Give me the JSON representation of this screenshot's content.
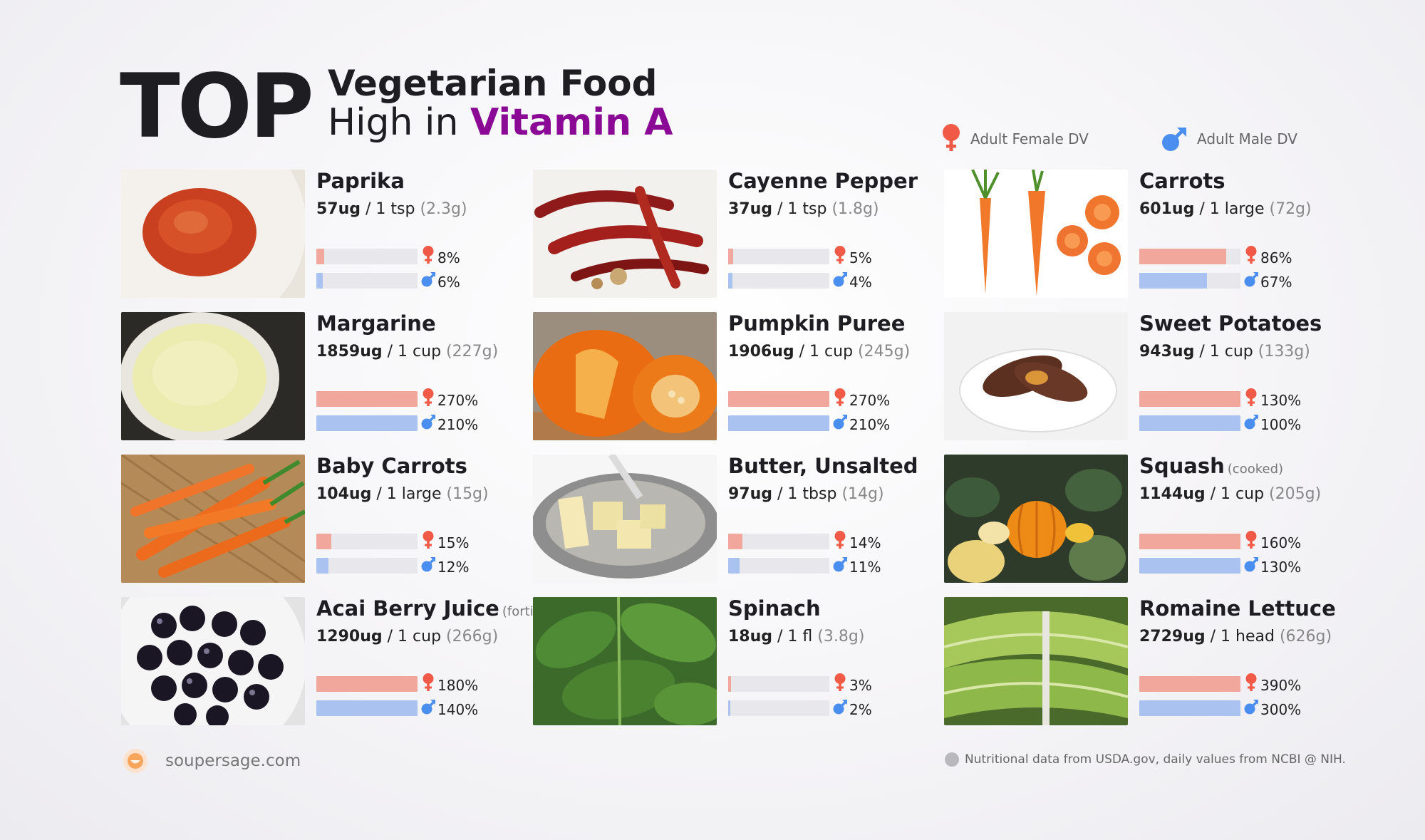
{
  "header": {
    "top_word": "TOP",
    "line1": "Vegetarian Food",
    "line2_prefix": "High in ",
    "line2_highlight": "Vitamin A",
    "highlight_color": "#8a0a96"
  },
  "legend": {
    "female_label": "Adult Female DV",
    "male_label": "Adult Male DV",
    "female_color": "#f05a46",
    "male_color": "#4a8ff0"
  },
  "chart_data": {
    "type": "bar",
    "series": [
      {
        "name": "Adult Female DV",
        "color": "#f1a79c"
      },
      {
        "name": "Adult Male DV",
        "color": "#a9c2f0"
      }
    ],
    "bar_full_scale_percent": 100,
    "items": [
      {
        "name": "Paprika",
        "note": "",
        "amount": "57ug",
        "portion": " / 1 tsp ",
        "grams": "(2.3g)",
        "female": 8,
        "male": 6,
        "female_label": "8%",
        "male_label": "6%",
        "image": "paprika"
      },
      {
        "name": "Cayenne Pepper",
        "note": "",
        "amount": "37ug",
        "portion": " / 1 tsp ",
        "grams": "(1.8g)",
        "female": 5,
        "male": 4,
        "female_label": "5%",
        "male_label": "4%",
        "image": "cayenne"
      },
      {
        "name": "Carrots",
        "note": "",
        "amount": "601ug",
        "portion": " / 1 large ",
        "grams": "(72g)",
        "female": 86,
        "male": 67,
        "female_label": "86%",
        "male_label": "67%",
        "image": "carrots"
      },
      {
        "name": "Margarine",
        "note": "",
        "amount": "1859ug",
        "portion": " / 1 cup ",
        "grams": "(227g)",
        "female": 270,
        "male": 210,
        "female_label": "270%",
        "male_label": "210%",
        "image": "margarine"
      },
      {
        "name": "Pumpkin Puree",
        "note": "",
        "amount": "1906ug",
        "portion": " / 1 cup ",
        "grams": "(245g)",
        "female": 270,
        "male": 210,
        "female_label": "270%",
        "male_label": "210%",
        "image": "pumpkin"
      },
      {
        "name": "Sweet Potatoes",
        "note": "",
        "amount": "943ug",
        "portion": " / 1 cup ",
        "grams": "(133g)",
        "female": 130,
        "male": 100,
        "female_label": "130%",
        "male_label": "100%",
        "image": "sweetpotato"
      },
      {
        "name": "Baby Carrots",
        "note": "",
        "amount": "104ug",
        "portion": " / 1 large ",
        "grams": "(15g)",
        "female": 15,
        "male": 12,
        "female_label": "15%",
        "male_label": "12%",
        "image": "babycarrots"
      },
      {
        "name": "Butter, Unsalted",
        "note": "",
        "amount": "97ug",
        "portion": " / 1 tbsp ",
        "grams": "(14g)",
        "female": 14,
        "male": 11,
        "female_label": "14%",
        "male_label": "11%",
        "image": "butter"
      },
      {
        "name": "Squash",
        "note": "(cooked)",
        "amount": "1144ug",
        "portion": " / 1 cup ",
        "grams": "(205g)",
        "female": 160,
        "male": 130,
        "female_label": "160%",
        "male_label": "130%",
        "image": "squash"
      },
      {
        "name": "Acai Berry Juice",
        "note": "(fortified)",
        "amount": "1290ug",
        "portion": " / 1 cup ",
        "grams": "(266g)",
        "female": 180,
        "male": 140,
        "female_label": "180%",
        "male_label": "140%",
        "image": "acai"
      },
      {
        "name": "Spinach",
        "note": "",
        "amount": "18ug",
        "portion": " / 1 fl ",
        "grams": "(3.8g)",
        "female": 3,
        "male": 2,
        "female_label": "3%",
        "male_label": "2%",
        "image": "spinach"
      },
      {
        "name": "Romaine Lettuce",
        "note": "",
        "amount": "2729ug",
        "portion": " / 1 head ",
        "grams": "(626g)",
        "female": 390,
        "male": 300,
        "female_label": "390%",
        "male_label": "300%",
        "image": "romaine"
      }
    ]
  },
  "footer": {
    "site": "soupersage.com",
    "source": "Nutritional data from USDA.gov, daily values from NCBI @ NIH."
  }
}
